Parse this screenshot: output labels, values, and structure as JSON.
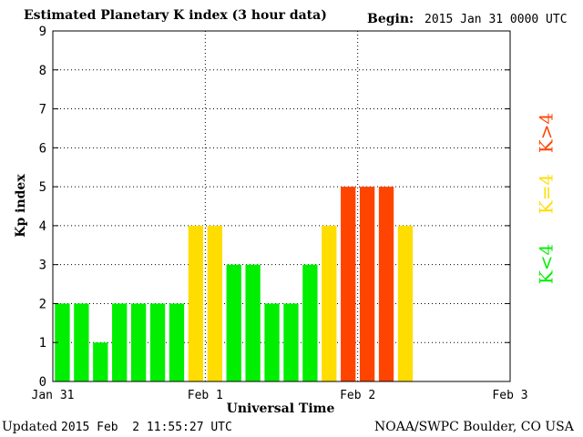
{
  "header": {
    "title": "Estimated Planetary K index (3 hour data)",
    "begin_label": "Begin:",
    "begin_value": "2015 Jan 31 0000 UTC"
  },
  "footer": {
    "updated_label": "Updated",
    "updated_value": "2015 Feb  2 11:55:27 UTC",
    "credit": "NOAA/SWPC Boulder, CO USA"
  },
  "colors": {
    "below": "#00ee00",
    "equal": "#ffdd00",
    "above": "#ff4400"
  },
  "legend": {
    "below": "K<4",
    "equal": "K=4",
    "above": "K>4"
  },
  "chart_data": {
    "type": "bar",
    "title": "Estimated Planetary K index (3 hour data)",
    "xlabel": "Universal Time",
    "ylabel": "Kp index",
    "ylim": [
      0,
      9
    ],
    "yticks": [
      0,
      1,
      2,
      3,
      4,
      5,
      6,
      7,
      8,
      9
    ],
    "x_tick_labels": [
      "Jan 31",
      "Feb 1",
      "Feb 2",
      "Feb 3"
    ],
    "x_tick_positions_days": [
      0,
      1,
      2,
      3
    ],
    "x_range_days": [
      0,
      3
    ],
    "bar_interval_hours": 3,
    "grid": true,
    "values": [
      2,
      2,
      1,
      2,
      2,
      2,
      2,
      4,
      4,
      3,
      3,
      2,
      2,
      3,
      4,
      5,
      5,
      5,
      4
    ]
  }
}
